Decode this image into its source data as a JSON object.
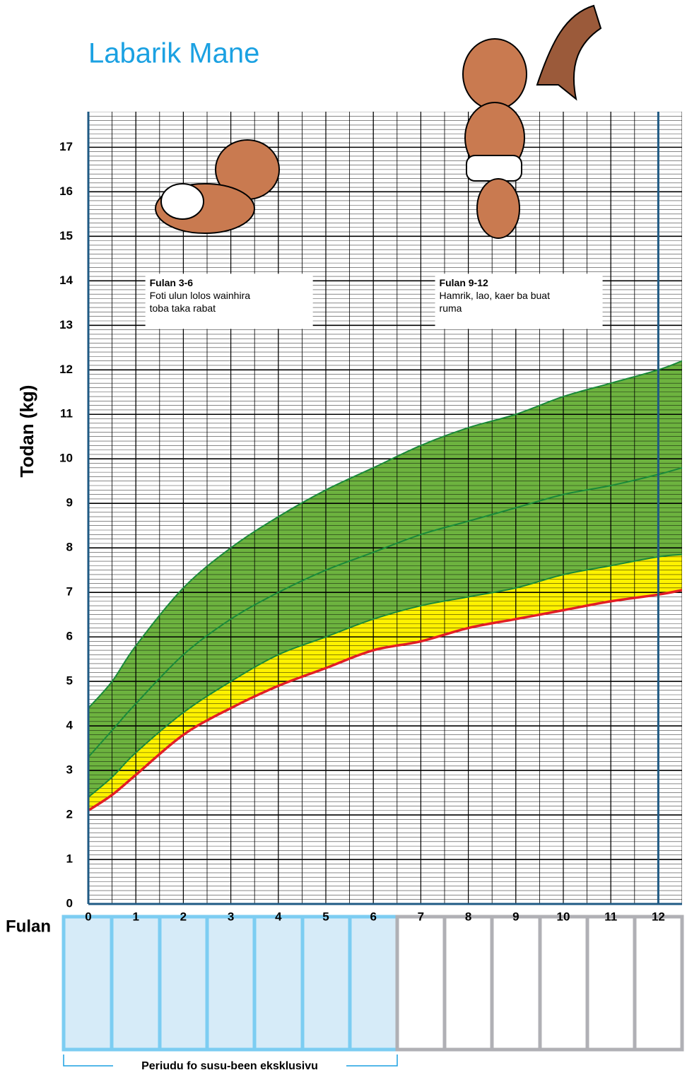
{
  "chart_data": {
    "type": "growth",
    "title": "Labarik Mane",
    "y_label": "Todan (kg)",
    "x_label": "Fulan",
    "x": [
      0,
      0.5,
      1,
      2,
      3,
      4,
      5,
      6,
      7,
      8,
      9,
      10,
      11,
      12,
      12.5
    ],
    "series": [
      {
        "color": "#1a8a3a",
        "band_fill": "#6db33f",
        "values": [
          4.4,
          5.0,
          5.8,
          7.1,
          8.0,
          8.7,
          9.3,
          9.8,
          10.3,
          10.7,
          11.0,
          11.4,
          11.7,
          12.0,
          12.2
        ]
      },
      {
        "color": "#1a8a3a",
        "band_fill": "#6db33f",
        "values": [
          3.3,
          3.9,
          4.5,
          5.6,
          6.4,
          7.0,
          7.5,
          7.9,
          8.3,
          8.6,
          8.9,
          9.2,
          9.4,
          9.65,
          9.8
        ]
      },
      {
        "color": "#1a8a3a",
        "band_fill": "#fff200",
        "values": [
          2.4,
          2.85,
          3.4,
          4.3,
          5.0,
          5.6,
          6.0,
          6.4,
          6.7,
          6.9,
          7.1,
          7.4,
          7.6,
          7.8,
          7.85
        ]
      },
      {
        "color": "#e31e24",
        "values": [
          2.1,
          2.45,
          2.9,
          3.8,
          4.4,
          4.9,
          5.3,
          5.7,
          5.9,
          6.2,
          6.4,
          6.6,
          6.8,
          6.95,
          7.05
        ]
      }
    ],
    "xlim": [
      0,
      12.5
    ],
    "ylim": [
      0,
      17.8
    ],
    "xticks": [
      0,
      1,
      2,
      3,
      4,
      5,
      6,
      7,
      8,
      9,
      10,
      11,
      12
    ],
    "yticks": [
      0,
      1,
      2,
      3,
      4,
      5,
      6,
      7,
      8,
      9,
      10,
      11,
      12,
      13,
      14,
      15,
      16,
      17
    ],
    "grid": true,
    "minor_x_step": 0.5,
    "minor_y_step": 0.1,
    "marker_months": [
      0,
      12
    ],
    "annotations": [
      {
        "x": 1.2,
        "y": 14.0,
        "title": "Fulan 3-6",
        "lines": [
          "Foti ulun lolos wainhira",
          "toba taka rabat"
        ]
      },
      {
        "x": 7.3,
        "y": 14.0,
        "title": "Fulan 9-12",
        "lines": [
          "Hamrik, lao, kaer ba buat",
          "ruma"
        ]
      }
    ],
    "period_label": "Periudu fo susu-been eksklusivu"
  }
}
